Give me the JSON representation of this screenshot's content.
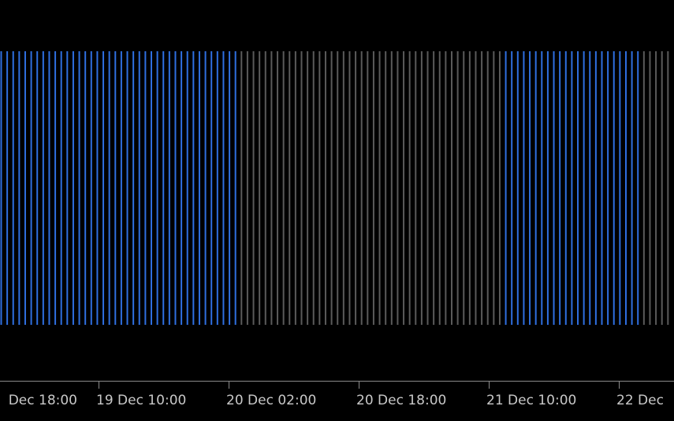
{
  "x_axis": {
    "labels": [
      "Dec 18:00",
      "19 Dec 10:00",
      "20 Dec 02:00",
      "20 Dec 18:00",
      "21 Dec 10:00",
      "22 Dec"
    ]
  }
}
